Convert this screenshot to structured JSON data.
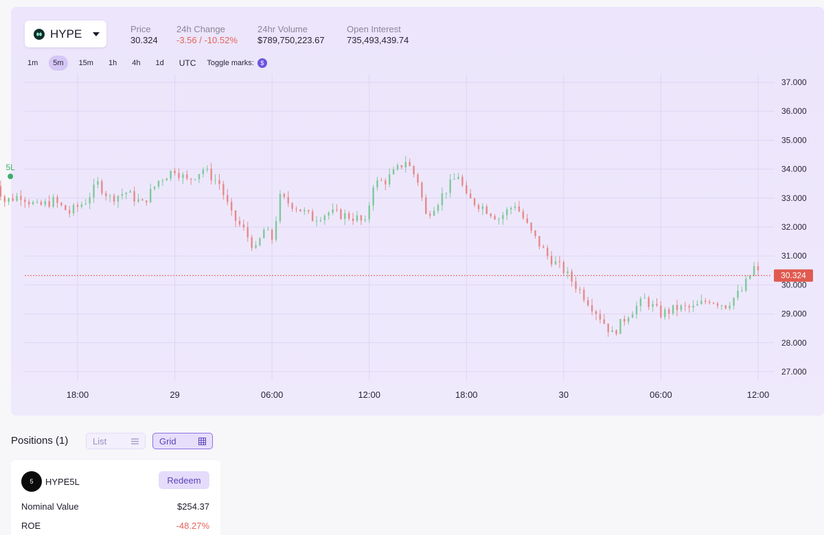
{
  "symbol": {
    "name": "HYPE",
    "icon": "hype-logo-icon"
  },
  "stats": [
    {
      "label": "Price",
      "value": "30.324",
      "negative": false
    },
    {
      "label": "24h Change",
      "value": "-3.56 / -10.52%",
      "negative": true
    },
    {
      "label": "24hr Volume",
      "value": "$789,750,223.67",
      "negative": false
    },
    {
      "label": "Open Interest",
      "value": "735,493,439.74",
      "negative": false
    }
  ],
  "intervals": [
    "1m",
    "5m",
    "15m",
    "1h",
    "4h",
    "1d"
  ],
  "active_interval": "5m",
  "timezone": "UTC",
  "toggle_marks_label": "Toggle marks:",
  "toggle_marks_glyph": "$",
  "colors": {
    "up": "#7dc99a",
    "down": "#e58a8a",
    "accent": "#6b54e0",
    "price_tag": "#e05a4f"
  },
  "chart_data": {
    "type": "candlestick",
    "ylim": [
      27.0,
      37.0
    ],
    "y_ticks": [
      "37.000",
      "36.000",
      "35.000",
      "34.000",
      "33.000",
      "32.000",
      "31.000",
      "30.000",
      "29.000",
      "28.000",
      "27.000"
    ],
    "x_ticks": [
      "18:00",
      "29",
      "06:00",
      "12:00",
      "18:00",
      "30",
      "06:00",
      "12:00"
    ],
    "last_price": "30.324",
    "marker": {
      "label": "5L",
      "value": 33.75
    },
    "close_path": [
      {
        "t": "28 12:45",
        "v": 33.8
      },
      {
        "t": "28 13:30",
        "v": 32.9
      },
      {
        "t": "28 14:30",
        "v": 33.1
      },
      {
        "t": "28 15:30",
        "v": 32.7
      },
      {
        "t": "28 16:30",
        "v": 32.9
      },
      {
        "t": "28 17:30",
        "v": 32.5
      },
      {
        "t": "28 18:30",
        "v": 32.9
      },
      {
        "t": "28 19:15",
        "v": 33.5
      },
      {
        "t": "28 20:00",
        "v": 33.0
      },
      {
        "t": "28 21:00",
        "v": 33.2
      },
      {
        "t": "28 22:00",
        "v": 32.8
      },
      {
        "t": "28 23:00",
        "v": 33.6
      },
      {
        "t": "29 00:00",
        "v": 34.0
      },
      {
        "t": "29 00:45",
        "v": 33.6
      },
      {
        "t": "29 01:45",
        "v": 34.0
      },
      {
        "t": "29 02:45",
        "v": 33.5
      },
      {
        "t": "29 03:30",
        "v": 32.4
      },
      {
        "t": "29 04:15",
        "v": 31.9
      },
      {
        "t": "29 05:00",
        "v": 31.2
      },
      {
        "t": "29 05:30",
        "v": 31.9
      },
      {
        "t": "29 06:00",
        "v": 31.6
      },
      {
        "t": "29 06:30",
        "v": 33.0
      },
      {
        "t": "29 07:30",
        "v": 32.7
      },
      {
        "t": "29 08:30",
        "v": 32.3
      },
      {
        "t": "29 09:30",
        "v": 32.5
      },
      {
        "t": "29 10:30",
        "v": 32.4
      },
      {
        "t": "29 11:15",
        "v": 32.3
      },
      {
        "t": "29 11:45",
        "v": 32.1
      },
      {
        "t": "29 12:15",
        "v": 33.5
      },
      {
        "t": "29 13:00",
        "v": 33.6
      },
      {
        "t": "29 13:45",
        "v": 34.0
      },
      {
        "t": "29 14:15",
        "v": 34.3
      },
      {
        "t": "29 15:00",
        "v": 33.6
      },
      {
        "t": "29 15:30",
        "v": 32.4
      },
      {
        "t": "29 16:15",
        "v": 32.9
      },
      {
        "t": "29 16:45",
        "v": 33.3
      },
      {
        "t": "29 17:30",
        "v": 33.8
      },
      {
        "t": "29 18:00",
        "v": 33.0
      },
      {
        "t": "29 19:00",
        "v": 32.7
      },
      {
        "t": "29 20:00",
        "v": 32.3
      },
      {
        "t": "29 21:00",
        "v": 32.8
      },
      {
        "t": "29 22:00",
        "v": 31.8
      },
      {
        "t": "29 23:00",
        "v": 31.0
      },
      {
        "t": "30 00:00",
        "v": 30.5
      },
      {
        "t": "30 01:00",
        "v": 29.8
      },
      {
        "t": "30 02:15",
        "v": 28.9
      },
      {
        "t": "30 03:00",
        "v": 28.3
      },
      {
        "t": "30 04:00",
        "v": 29.0
      },
      {
        "t": "30 05:00",
        "v": 29.5
      },
      {
        "t": "30 06:00",
        "v": 29.0
      },
      {
        "t": "30 07:00",
        "v": 29.2
      },
      {
        "t": "30 08:00",
        "v": 29.2
      },
      {
        "t": "30 09:00",
        "v": 29.5
      },
      {
        "t": "30 10:00",
        "v": 29.3
      },
      {
        "t": "30 11:00",
        "v": 29.8
      },
      {
        "t": "30 11:45",
        "v": 30.6
      },
      {
        "t": "30 12:00",
        "v": 30.4
      }
    ]
  },
  "positions": {
    "title": "Positions (1)",
    "view_list_label": "List",
    "view_grid_label": "Grid",
    "card": {
      "coin_glyph": "5",
      "name": "HYPE5L",
      "redeem_label": "Redeem",
      "rows": [
        {
          "label": "Nominal Value",
          "value": "$254.37",
          "negative": false
        },
        {
          "label": "ROE",
          "value": "-48.27%",
          "negative": true
        }
      ]
    }
  }
}
